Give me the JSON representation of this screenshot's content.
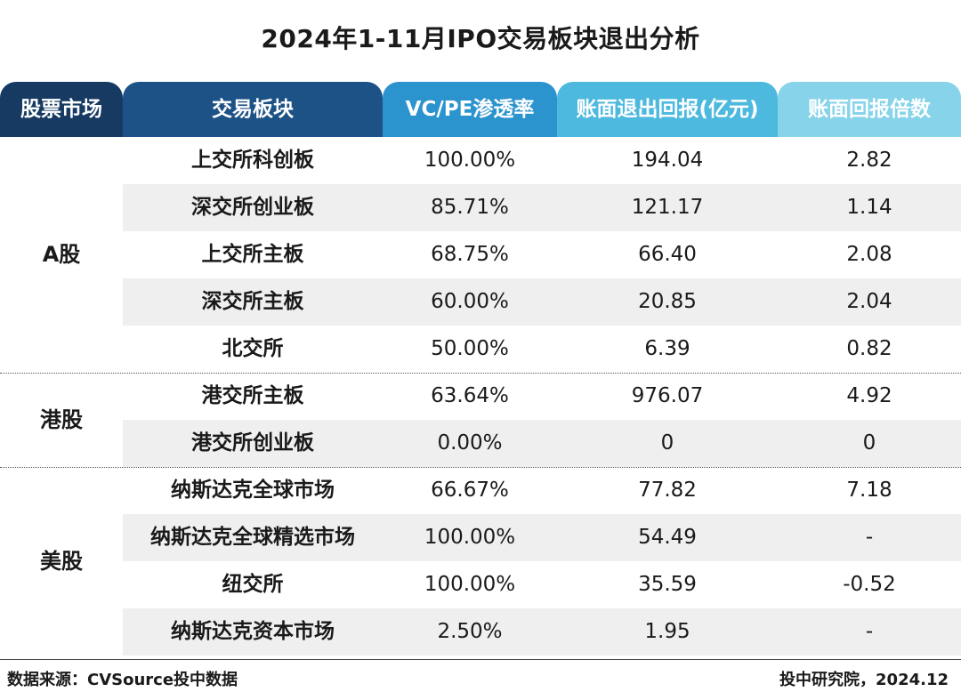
{
  "title": "2024年1-11月IPO交易板块退出分析",
  "chart_data": {
    "type": "table",
    "columns": [
      "股票市场",
      "交易板块",
      "VC/PE渗透率",
      "账面退出回报(亿元)",
      "账面回报倍数"
    ],
    "header_colors": [
      "#173a63",
      "#1d5286",
      "#2b93cd",
      "#4db9df",
      "#86d3ea"
    ],
    "groups": [
      {
        "market": "A股",
        "rows": [
          [
            "上交所科创板",
            "100.00%",
            "194.04",
            "2.82"
          ],
          [
            "深交所创业板",
            "85.71%",
            "121.17",
            "1.14"
          ],
          [
            "上交所主板",
            "68.75%",
            "66.40",
            "2.08"
          ],
          [
            "深交所主板",
            "60.00%",
            "20.85",
            "2.04"
          ],
          [
            "北交所",
            "50.00%",
            "6.39",
            "0.82"
          ]
        ]
      },
      {
        "market": "港股",
        "rows": [
          [
            "港交所主板",
            "63.64%",
            "976.07",
            "4.92"
          ],
          [
            "港交所创业板",
            "0.00%",
            "0",
            "0"
          ]
        ]
      },
      {
        "market": "美股",
        "rows": [
          [
            "纳斯达克全球市场",
            "66.67%",
            "77.82",
            "7.18"
          ],
          [
            "纳斯达克全球精选市场",
            "100.00%",
            "54.49",
            "-"
          ],
          [
            "纽交所",
            "100.00%",
            "35.59",
            "-0.52"
          ],
          [
            "纳斯达克资本市场",
            "2.50%",
            "1.95",
            "-"
          ]
        ]
      }
    ]
  },
  "footer": {
    "source": "数据来源：CVSource投中数据",
    "credit": "投中研究院，2024.12"
  }
}
